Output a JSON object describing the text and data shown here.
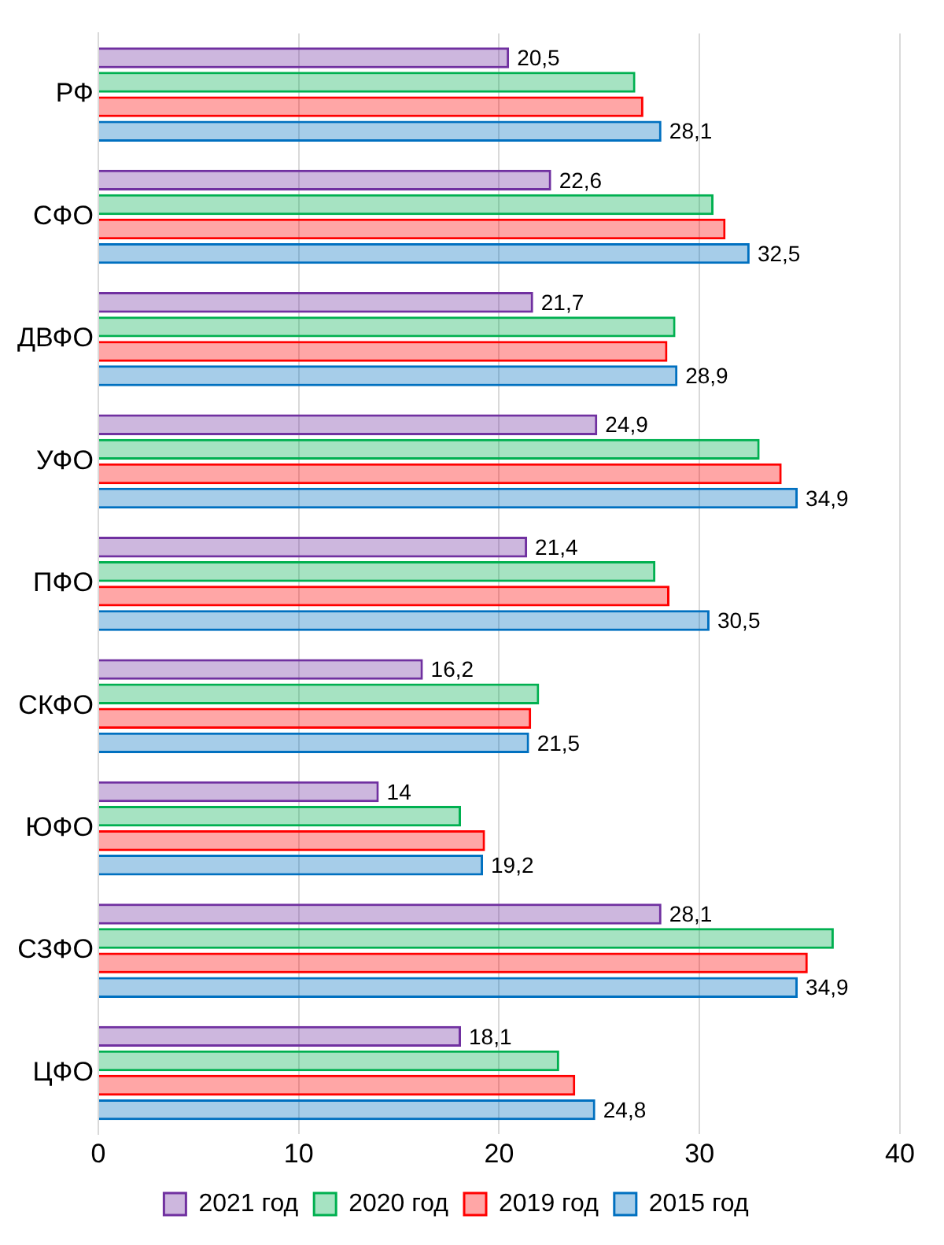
{
  "chart_data": {
    "type": "bar",
    "orientation": "horizontal",
    "categories": [
      "РФ",
      "СФО",
      "ДВФО",
      "УФО",
      "ПФО",
      "СКФО",
      "ЮФО",
      "СЗФО",
      "ЦФО"
    ],
    "series": [
      {
        "name": "2021 год",
        "color": "#7030a0",
        "values": [
          20.5,
          22.6,
          21.7,
          24.9,
          21.4,
          16.2,
          14,
          28.1,
          18.1
        ],
        "value_labels": [
          "20,5",
          "22,6",
          "21,7",
          "24,9",
          "21,4",
          "16,2",
          "14",
          "28,1",
          "18,1"
        ]
      },
      {
        "name": "2020 год",
        "color": "#00b050",
        "values": [
          26.8,
          30.7,
          28.8,
          33.0,
          27.8,
          22.0,
          18.1,
          36.7,
          23.0
        ]
      },
      {
        "name": "2019 год",
        "color": "#ff0000",
        "values": [
          27.2,
          31.3,
          28.4,
          34.1,
          28.5,
          21.6,
          19.3,
          35.4,
          23.8
        ]
      },
      {
        "name": "2015 год",
        "color": "#0070c0",
        "values": [
          28.1,
          32.5,
          28.9,
          34.9,
          30.5,
          21.5,
          19.2,
          34.9,
          24.8
        ],
        "value_labels": [
          "28,1",
          "32,5",
          "28,9",
          "34,9",
          "30,5",
          "21,5",
          "19,2",
          "34,9",
          "24,8"
        ]
      }
    ],
    "xlim": [
      0,
      40
    ],
    "xticks": [
      0,
      10,
      20,
      30,
      40
    ],
    "grid": "x",
    "legend": "bottom"
  }
}
